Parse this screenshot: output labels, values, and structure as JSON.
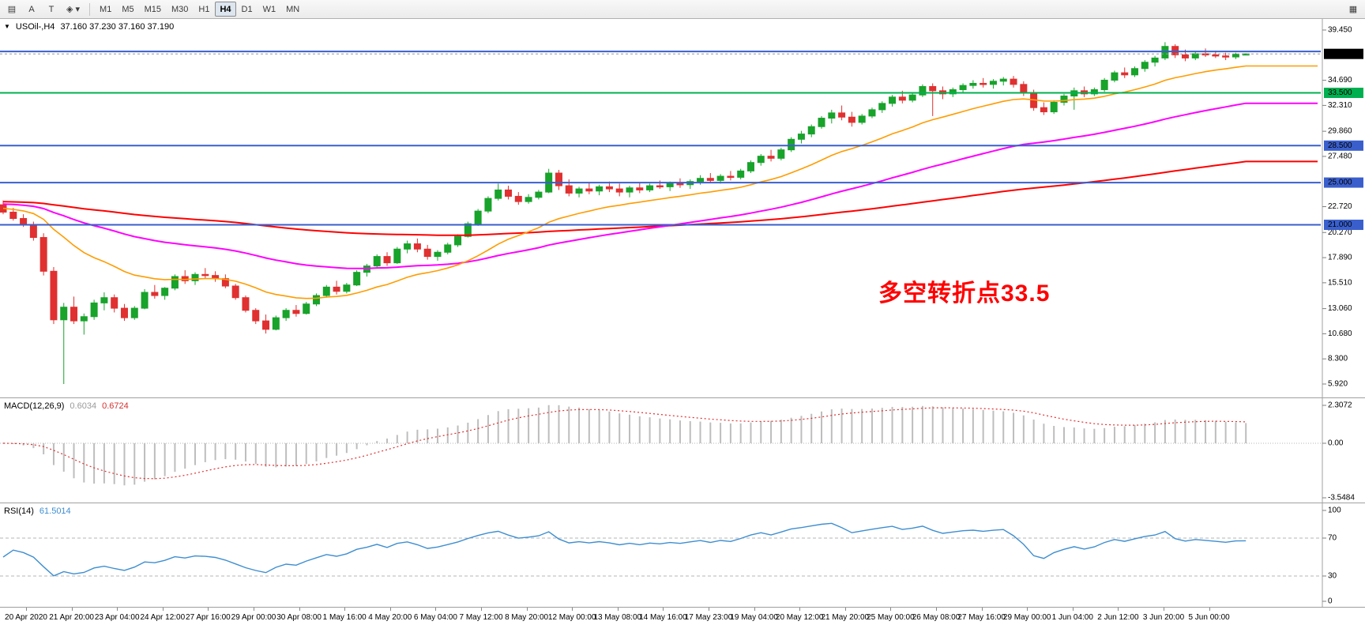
{
  "toolbar": {
    "tools": [
      {
        "id": "chart-mode",
        "glyph": "▤"
      },
      {
        "id": "text-label",
        "glyph": "A"
      },
      {
        "id": "text-box",
        "glyph": "T"
      },
      {
        "id": "shapes-dropdown",
        "glyph": "◈ ▾"
      }
    ],
    "timeframes": [
      "M1",
      "M5",
      "M15",
      "M30",
      "H1",
      "H4",
      "D1",
      "W1",
      "MN"
    ],
    "active_timeframe": "H4",
    "right_tool": {
      "id": "windows",
      "glyph": "▦"
    }
  },
  "chart": {
    "collapse_icon": "▼",
    "symbol_title": "USOil-,H4",
    "ohlc": "37.160 37.230 37.160 37.190",
    "annotation": {
      "text": "多空转折点33.5",
      "color": "#ff0000"
    },
    "current_price": {
      "value": 37.19,
      "label": "37.190",
      "box_color": "#000000"
    },
    "hlines": [
      {
        "value": 37.42,
        "label": "",
        "color": "#3a5fcd",
        "boxed": false
      },
      {
        "value": 33.5,
        "label": "33.500",
        "color": "#00b050",
        "boxed": true
      },
      {
        "value": 28.5,
        "label": "28.500",
        "color": "#3a5fcd",
        "boxed": true
      },
      {
        "value": 25.0,
        "label": "25.000",
        "color": "#3a5fcd",
        "boxed": true
      },
      {
        "value": 21.0,
        "label": "21.000",
        "color": "#3a5fcd",
        "boxed": true
      }
    ],
    "price_ticks": [
      {
        "label": "39.450",
        "value": 39.45
      },
      {
        "label": "34.690",
        "value": 34.69
      },
      {
        "label": "32.310",
        "value": 32.31
      },
      {
        "label": "29.860",
        "value": 29.86
      },
      {
        "label": "27.480",
        "value": 27.48
      },
      {
        "label": "22.720",
        "value": 22.72
      },
      {
        "label": "20.270",
        "value": 20.27
      },
      {
        "label": "17.890",
        "value": 17.89
      },
      {
        "label": "15.510",
        "value": 15.51
      },
      {
        "label": "13.060",
        "value": 13.06
      },
      {
        "label": "10.680",
        "value": 10.68
      },
      {
        "label": "8.300",
        "value": 8.3
      },
      {
        "label": "5.920",
        "value": 5.92
      }
    ]
  },
  "chart_data": {
    "type": "candlestick",
    "symbol": "USOil",
    "timeframe": "H4",
    "visible_price_range": [
      5.92,
      39.45
    ],
    "up_color": "#18a32b",
    "down_color": "#e03030",
    "candles": [
      [
        22.9,
        23.3,
        22.0,
        22.2
      ],
      [
        22.2,
        22.6,
        21.4,
        21.6
      ],
      [
        21.6,
        22.0,
        20.8,
        21.0
      ],
      [
        21.0,
        21.3,
        19.5,
        19.8
      ],
      [
        19.8,
        20.2,
        16.2,
        16.6
      ],
      [
        16.6,
        17.0,
        11.6,
        12.0
      ],
      [
        12.0,
        13.6,
        5.92,
        13.2
      ],
      [
        13.2,
        14.2,
        11.6,
        11.9
      ],
      [
        11.9,
        12.6,
        10.6,
        12.3
      ],
      [
        12.3,
        13.9,
        12.0,
        13.6
      ],
      [
        13.6,
        14.6,
        12.9,
        14.1
      ],
      [
        14.1,
        14.4,
        12.7,
        13.1
      ],
      [
        13.1,
        13.5,
        11.9,
        12.2
      ],
      [
        12.2,
        13.3,
        12.0,
        13.1
      ],
      [
        13.1,
        14.9,
        13.0,
        14.6
      ],
      [
        14.6,
        15.3,
        14.0,
        14.3
      ],
      [
        14.3,
        15.1,
        13.9,
        15.0
      ],
      [
        15.0,
        16.3,
        14.8,
        16.1
      ],
      [
        16.1,
        16.7,
        15.4,
        15.7
      ],
      [
        15.7,
        16.5,
        15.3,
        16.3
      ],
      [
        16.3,
        16.9,
        15.9,
        16.2
      ],
      [
        16.2,
        16.6,
        15.6,
        15.9
      ],
      [
        15.9,
        16.3,
        15.0,
        15.2
      ],
      [
        15.2,
        15.4,
        13.9,
        14.1
      ],
      [
        14.1,
        14.3,
        12.7,
        12.9
      ],
      [
        12.9,
        13.1,
        11.6,
        11.9
      ],
      [
        11.9,
        12.5,
        10.7,
        11.1
      ],
      [
        11.1,
        12.4,
        11.0,
        12.2
      ],
      [
        12.2,
        13.1,
        11.9,
        12.9
      ],
      [
        12.9,
        13.4,
        12.3,
        12.6
      ],
      [
        12.6,
        13.7,
        12.5,
        13.5
      ],
      [
        13.5,
        14.5,
        13.3,
        14.3
      ],
      [
        14.3,
        15.3,
        14.1,
        15.1
      ],
      [
        15.1,
        15.7,
        14.4,
        14.7
      ],
      [
        14.7,
        15.5,
        14.5,
        15.3
      ],
      [
        15.3,
        16.7,
        15.2,
        16.5
      ],
      [
        16.5,
        17.3,
        16.1,
        17.1
      ],
      [
        17.1,
        18.2,
        16.9,
        18.0
      ],
      [
        18.0,
        18.4,
        17.1,
        17.4
      ],
      [
        17.4,
        18.9,
        17.3,
        18.7
      ],
      [
        18.7,
        19.5,
        18.3,
        19.2
      ],
      [
        19.2,
        19.7,
        18.4,
        18.7
      ],
      [
        18.7,
        19.1,
        17.7,
        18.0
      ],
      [
        18.0,
        18.6,
        17.6,
        18.4
      ],
      [
        18.4,
        19.3,
        18.2,
        19.1
      ],
      [
        19.1,
        20.1,
        18.9,
        19.9
      ],
      [
        19.9,
        21.3,
        19.8,
        21.1
      ],
      [
        21.1,
        22.5,
        20.9,
        22.3
      ],
      [
        22.3,
        23.7,
        22.1,
        23.5
      ],
      [
        23.5,
        24.9,
        23.3,
        24.3
      ],
      [
        24.3,
        24.7,
        23.4,
        23.7
      ],
      [
        23.7,
        24.1,
        22.9,
        23.2
      ],
      [
        23.2,
        23.9,
        23.0,
        23.6
      ],
      [
        23.6,
        24.3,
        23.4,
        24.1
      ],
      [
        24.1,
        26.3,
        24.0,
        25.9
      ],
      [
        25.9,
        26.2,
        24.3,
        24.7
      ],
      [
        24.7,
        25.3,
        23.7,
        24.0
      ],
      [
        24.0,
        24.6,
        23.6,
        24.4
      ],
      [
        24.4,
        25.0,
        23.9,
        24.2
      ],
      [
        24.2,
        24.8,
        23.8,
        24.6
      ],
      [
        24.6,
        25.1,
        24.1,
        24.4
      ],
      [
        24.4,
        24.9,
        23.7,
        24.1
      ],
      [
        24.1,
        24.7,
        23.6,
        24.5
      ],
      [
        24.5,
        25.0,
        24.0,
        24.3
      ],
      [
        24.3,
        24.9,
        24.1,
        24.7
      ],
      [
        24.7,
        25.2,
        24.4,
        24.6
      ],
      [
        24.6,
        25.1,
        24.2,
        24.9
      ],
      [
        24.9,
        25.4,
        24.5,
        24.8
      ],
      [
        24.8,
        25.3,
        24.4,
        25.1
      ],
      [
        25.1,
        25.7,
        24.8,
        25.4
      ],
      [
        25.4,
        25.9,
        25.0,
        25.2
      ],
      [
        25.2,
        25.8,
        24.9,
        25.6
      ],
      [
        25.6,
        26.1,
        25.2,
        25.5
      ],
      [
        25.5,
        26.3,
        25.3,
        26.1
      ],
      [
        26.1,
        27.1,
        25.9,
        26.9
      ],
      [
        26.9,
        27.7,
        26.6,
        27.5
      ],
      [
        27.5,
        28.1,
        27.0,
        27.3
      ],
      [
        27.3,
        28.3,
        27.1,
        28.1
      ],
      [
        28.1,
        29.3,
        27.9,
        29.1
      ],
      [
        29.1,
        29.9,
        28.7,
        29.6
      ],
      [
        29.6,
        30.5,
        29.3,
        30.3
      ],
      [
        30.3,
        31.3,
        30.1,
        31.1
      ],
      [
        31.1,
        31.9,
        30.6,
        31.6
      ],
      [
        31.6,
        32.3,
        30.9,
        31.2
      ],
      [
        31.2,
        31.7,
        30.3,
        30.7
      ],
      [
        30.7,
        31.5,
        30.5,
        31.3
      ],
      [
        31.3,
        32.1,
        31.1,
        31.9
      ],
      [
        31.9,
        32.7,
        31.6,
        32.5
      ],
      [
        32.5,
        33.3,
        32.2,
        33.1
      ],
      [
        33.1,
        33.7,
        32.5,
        32.8
      ],
      [
        32.8,
        33.5,
        32.6,
        33.3
      ],
      [
        33.3,
        34.3,
        33.1,
        34.1
      ],
      [
        34.1,
        34.4,
        31.3,
        33.7
      ],
      [
        33.7,
        34.1,
        32.9,
        33.4
      ],
      [
        33.4,
        34.0,
        33.1,
        33.8
      ],
      [
        33.8,
        34.4,
        33.5,
        34.2
      ],
      [
        34.2,
        34.7,
        33.9,
        34.4
      ],
      [
        34.4,
        34.9,
        34.0,
        34.3
      ],
      [
        34.3,
        34.8,
        33.9,
        34.6
      ],
      [
        34.6,
        35.0,
        34.2,
        34.8
      ],
      [
        34.8,
        35.1,
        34.0,
        34.3
      ],
      [
        34.3,
        34.6,
        33.2,
        33.5
      ],
      [
        33.5,
        33.8,
        31.8,
        32.1
      ],
      [
        32.1,
        32.6,
        31.4,
        31.7
      ],
      [
        31.7,
        32.8,
        31.5,
        32.6
      ],
      [
        32.6,
        33.4,
        32.3,
        33.2
      ],
      [
        33.2,
        34.0,
        31.9,
        33.7
      ],
      [
        33.7,
        34.1,
        33.1,
        33.4
      ],
      [
        33.4,
        34.0,
        33.2,
        33.8
      ],
      [
        33.8,
        34.9,
        33.6,
        34.7
      ],
      [
        34.7,
        35.6,
        34.5,
        35.4
      ],
      [
        35.4,
        35.9,
        34.9,
        35.2
      ],
      [
        35.2,
        36.0,
        35.0,
        35.8
      ],
      [
        35.8,
        36.6,
        35.5,
        36.4
      ],
      [
        36.4,
        37.0,
        36.0,
        36.8
      ],
      [
        36.8,
        38.3,
        36.6,
        37.9
      ],
      [
        37.9,
        38.1,
        36.8,
        37.1
      ],
      [
        37.1,
        37.6,
        36.5,
        36.8
      ],
      [
        36.8,
        37.4,
        36.6,
        37.2
      ],
      [
        37.2,
        37.7,
        36.9,
        37.1
      ],
      [
        37.1,
        37.5,
        36.8,
        37.0
      ],
      [
        37.0,
        37.3,
        36.6,
        36.9
      ],
      [
        36.9,
        37.3,
        36.7,
        37.16
      ],
      [
        37.16,
        37.23,
        37.16,
        37.19
      ]
    ],
    "x_labels": [
      "20 Apr 2020",
      "21 Apr 20:00",
      "23 Apr 04:00",
      "24 Apr 12:00",
      "27 Apr 16:00",
      "29 Apr 00:00",
      "30 Apr 08:00",
      "1 May 16:00",
      "4 May 20:00",
      "6 May 04:00",
      "7 May 12:00",
      "8 May 20:00",
      "12 May 00:00",
      "13 May 08:00",
      "14 May 16:00",
      "17 May 23:00",
      "19 May 04:00",
      "20 May 12:00",
      "21 May 20:00",
      "25 May 00:00",
      "26 May 08:00",
      "27 May 16:00",
      "29 May 00:00",
      "1 Jun 04:00",
      "2 Jun 12:00",
      "3 Jun 20:00",
      "5 Jun 00:00"
    ],
    "moving_averages": [
      {
        "name": "slow-ma",
        "color": "#ff0000",
        "alpha": 0.012,
        "seed": 23.2,
        "width": 2
      },
      {
        "name": "medium-ma",
        "color": "#ff00ff",
        "alpha": 0.035,
        "seed": 23.0,
        "width": 2
      },
      {
        "name": "fast-ma",
        "color": "#ff9c00",
        "alpha": 0.1,
        "seed": 22.6,
        "width": 1.6
      }
    ],
    "indicators": {
      "macd": {
        "label": "MACD(12,26,9)",
        "value_main": "0.6034",
        "value_signal": "0.6724",
        "params": [
          12,
          26,
          9
        ],
        "histogram_color": "#bdbdbd",
        "signal_color": "#e03030",
        "scale_labels": [
          {
            "label": "2.3072",
            "value": 2.3072
          },
          {
            "label": "0.00",
            "value": 0
          },
          {
            "label": "-3.5484",
            "value": -3.5484
          }
        ]
      },
      "rsi": {
        "label": "RSI(14)",
        "value": "61.5014",
        "period": 14,
        "line_color": "#3e8ed0",
        "levels": [
          70,
          30
        ],
        "scale_labels": [
          {
            "label": "100",
            "value": 100
          },
          {
            "label": "70",
            "value": 70
          },
          {
            "label": "30",
            "value": 30
          },
          {
            "label": "0",
            "value": 0
          }
        ]
      }
    }
  }
}
